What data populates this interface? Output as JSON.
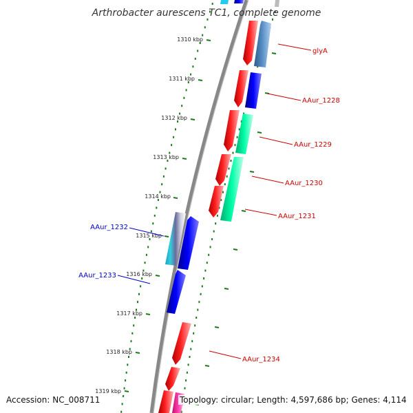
{
  "title": "Arthrobacter aurescens TC1, complete genome",
  "footer": {
    "accession": "Accession: NC_008711",
    "stats": "Topology: circular; Length: 4,597,686 bp; Genes: 4,114"
  },
  "ticks": [
    {
      "label": "1310 kbp"
    },
    {
      "label": "1311 kbp"
    },
    {
      "label": "1312 kbp"
    },
    {
      "label": "1313 kbp"
    },
    {
      "label": "1314 kbp"
    },
    {
      "label": "1315 kbp"
    },
    {
      "label": "1316 kbp"
    },
    {
      "label": "1317 kbp"
    },
    {
      "label": "1318 kbp"
    },
    {
      "label": "1319 kbp"
    }
  ],
  "gene_labels": [
    {
      "text": "glyA",
      "color": "#cc0000"
    },
    {
      "text": "AAur_1228",
      "color": "#cc0000"
    },
    {
      "text": "AAur_1229",
      "color": "#cc0000"
    },
    {
      "text": "AAur_1230",
      "color": "#cc0000"
    },
    {
      "text": "AAur_1231",
      "color": "#cc0000"
    },
    {
      "text": "AAur_1232",
      "color": "#0000cc"
    },
    {
      "text": "AAur_1233",
      "color": "#0000cc"
    },
    {
      "text": "AAur_1234",
      "color": "#cc0000"
    }
  ],
  "colors": {
    "backbone": "#888888",
    "tick_dots": "#1a7a1a",
    "gene_red": "#ee0000",
    "gene_blue": "#0000ee",
    "gene_green": "#00ee99",
    "gene_steel": "#4a7fb5",
    "gene_cyan": "#22aacc",
    "gene_magenta": "#ff33aa"
  }
}
